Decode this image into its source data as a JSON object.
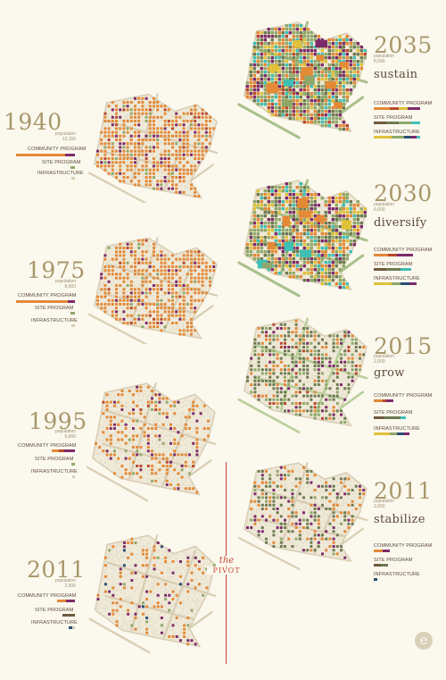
{
  "palette": {
    "bg": "#fbf8ee",
    "street": "#d8cdb3",
    "block": "#efe9d8",
    "orange": "#e48936",
    "purple": "#7d2a6a",
    "green": "#8fa86a",
    "olive": "#6d7a52",
    "teal": "#3fbfb5",
    "yellow": "#e0c13a",
    "rust": "#b9472b",
    "darkblue": "#2a4e73",
    "accent": "#c7442c",
    "year_color": "#a8976b"
  },
  "panels": [
    {
      "id": "1940",
      "year": "1940",
      "population": [
        "population",
        "12,150"
      ],
      "verb": "",
      "labels": [
        "COMMUNITY PROGRAM",
        "SITE PROGRAM",
        "INFRASTRUCTURE"
      ]
    },
    {
      "id": "1975",
      "year": "1975",
      "population": [
        "population",
        "8,000"
      ],
      "verb": "",
      "labels": [
        "COMMUNITY PROGRAM",
        "SITE PROGRAM",
        "INFRASTRUCTURE"
      ]
    },
    {
      "id": "1995",
      "year": "1995",
      "population": [
        "population",
        "5,000"
      ],
      "verb": "",
      "labels": [
        "COMMUNITY PROGRAM",
        "SITE PROGRAM",
        "INFRASTRUCTURE"
      ]
    },
    {
      "id": "2011a",
      "year": "2011",
      "population": [
        "population",
        "2,000"
      ],
      "verb": "",
      "labels": [
        "COMMUNITY PROGRAM",
        "SITE PROGRAM",
        "INFRASTRUCTURE"
      ]
    },
    {
      "id": "2035",
      "year": "2035",
      "population": [
        "population",
        "8,500"
      ],
      "verb": "sustain",
      "labels": [
        "COMMUNITY PROGRAM",
        "SITE PROGRAM",
        "INFRASTRUCTURE"
      ]
    },
    {
      "id": "2030",
      "year": "2030",
      "population": [
        "population",
        "6,000"
      ],
      "verb": "diversify",
      "labels": [
        "COMMUNITY PROGRAM",
        "SITE PROGRAM",
        "INFRASTRUCTURE"
      ]
    },
    {
      "id": "2015",
      "year": "2015",
      "population": [
        "population",
        "2,000"
      ],
      "verb": "grow",
      "labels": [
        "COMMUNITY PROGRAM",
        "SITE PROGRAM",
        "INFRASTRUCTURE"
      ]
    },
    {
      "id": "2011b",
      "year": "2011",
      "population": [
        "population",
        "2,000"
      ],
      "verb": "stabilize",
      "labels": [
        "COMMUNITY PROGRAM",
        "SITE PROGRAM",
        "INFRASTRUCTURE"
      ]
    }
  ],
  "pivot": {
    "the": "the",
    "word": "PIVOT"
  },
  "logo": "e"
}
